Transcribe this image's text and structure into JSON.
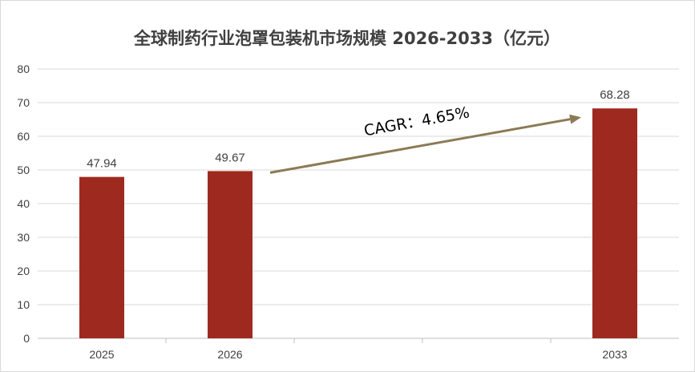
{
  "chart_data": {
    "type": "bar",
    "title": "全球制药行业泡罩包装机市场规模 2026-2033（亿元）",
    "categories": [
      "2025",
      "2026",
      "",
      "",
      "2033"
    ],
    "values": [
      47.94,
      49.67,
      null,
      null,
      68.28
    ],
    "data_labels": [
      "47.94",
      "49.67",
      "",
      "",
      "68.28"
    ],
    "ylim": [
      0,
      80
    ],
    "yticks": [
      "0",
      "10",
      "20",
      "30",
      "40",
      "50",
      "60",
      "70",
      "80"
    ],
    "grid": true,
    "legend": "none",
    "annotation": {
      "text": "CAGR：4.65%",
      "from_category_index": 1,
      "to_category_index": 4
    },
    "colors": {
      "bar": "#9e2a1f",
      "arrow": "#8b7a55",
      "grid": "#d9d9d9",
      "axis": "#bfbfbf",
      "text": "#404040"
    }
  }
}
